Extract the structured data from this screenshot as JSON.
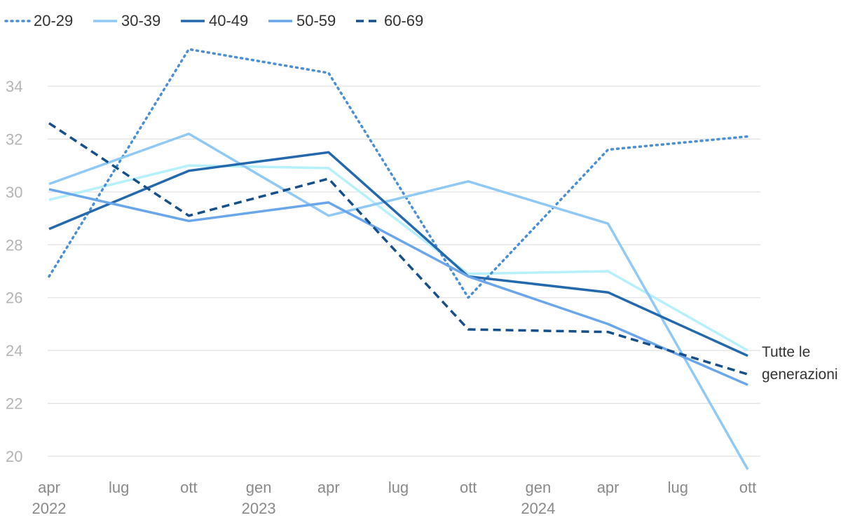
{
  "chart_data": {
    "type": "line",
    "x": [
      "2022-04",
      "2022-10",
      "2023-04",
      "2023-10",
      "2024-04",
      "2024-10"
    ],
    "x_tick_labels": [
      {
        "month": "apr",
        "year": "2022"
      },
      {
        "month": "lug",
        "year": ""
      },
      {
        "month": "ott",
        "year": ""
      },
      {
        "month": "gen",
        "year": "2023"
      },
      {
        "month": "apr",
        "year": ""
      },
      {
        "month": "lug",
        "year": ""
      },
      {
        "month": "ott",
        "year": ""
      },
      {
        "month": "gen",
        "year": "2024"
      },
      {
        "month": "apr",
        "year": ""
      },
      {
        "month": "lug",
        "year": ""
      },
      {
        "month": "ott",
        "year": ""
      }
    ],
    "y_ticks": [
      20,
      22,
      24,
      26,
      28,
      30,
      32,
      34
    ],
    "ylim": [
      19.5,
      35.5
    ],
    "grid": true,
    "legend_position": "top-left",
    "series": [
      {
        "name": "20-29",
        "values": [
          26.8,
          35.4,
          34.5,
          26.0,
          31.6,
          32.1
        ],
        "color": "#4a8fd6",
        "dash": "dotted"
      },
      {
        "name": "30-39",
        "values": [
          30.3,
          32.2,
          29.1,
          30.4,
          28.8,
          19.5
        ],
        "color": "#90c9f5",
        "dash": "solid"
      },
      {
        "name": "40-49",
        "values": [
          28.6,
          30.8,
          31.5,
          26.8,
          26.2,
          23.8
        ],
        "color": "#2469ad",
        "dash": "solid"
      },
      {
        "name": "50-59",
        "values": [
          30.1,
          28.9,
          29.6,
          26.8,
          25.0,
          22.7
        ],
        "color": "#6aa6ec",
        "dash": "solid"
      },
      {
        "name": "60-69",
        "values": [
          32.6,
          29.1,
          30.5,
          24.8,
          24.7,
          23.1
        ],
        "color": "#164f8a",
        "dash": "dashed"
      },
      {
        "name": "",
        "values": [
          29.7,
          31.0,
          30.9,
          26.9,
          27.0,
          24.0
        ],
        "color": "#b6f0fb",
        "dash": "solid",
        "label_lines": [
          "Tutte le",
          "generazioni"
        ]
      }
    ]
  }
}
